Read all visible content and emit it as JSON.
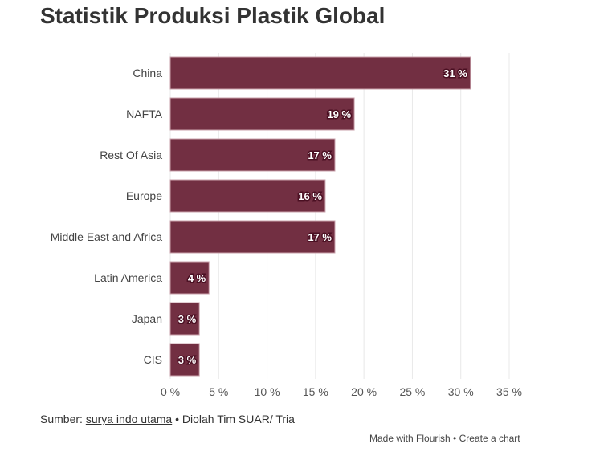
{
  "chart_data": {
    "type": "bar",
    "orientation": "horizontal",
    "title": "Statistik Produksi Plastik Global",
    "categories": [
      "China",
      "NAFTA",
      "Rest Of Asia",
      "Europe",
      "Middle East and Africa",
      "Latin America",
      "Japan",
      "CIS"
    ],
    "values": [
      31,
      19,
      17,
      16,
      17,
      4,
      3,
      3
    ],
    "value_labels": [
      "31 %",
      "19 %",
      "17 %",
      "16 %",
      "17 %",
      "4 %",
      "3 %",
      "3 %"
    ],
    "xlim": [
      0,
      35
    ],
    "xticks": [
      0,
      5,
      10,
      15,
      20,
      25,
      30,
      35
    ],
    "xtick_labels": [
      "0 %",
      "5 %",
      "10 %",
      "15 %",
      "20 %",
      "25 %",
      "30 %",
      "35 %"
    ],
    "grid": true,
    "bar_color": "#722f42"
  },
  "footer": {
    "source_prefix": "Sumber: ",
    "source_link": "surya indo utama",
    "source_suffix": " • Diolah Tim SUAR/ Tria",
    "credit_made": "Made with Flourish",
    "credit_sep": " • ",
    "credit_create": "Create a chart"
  }
}
